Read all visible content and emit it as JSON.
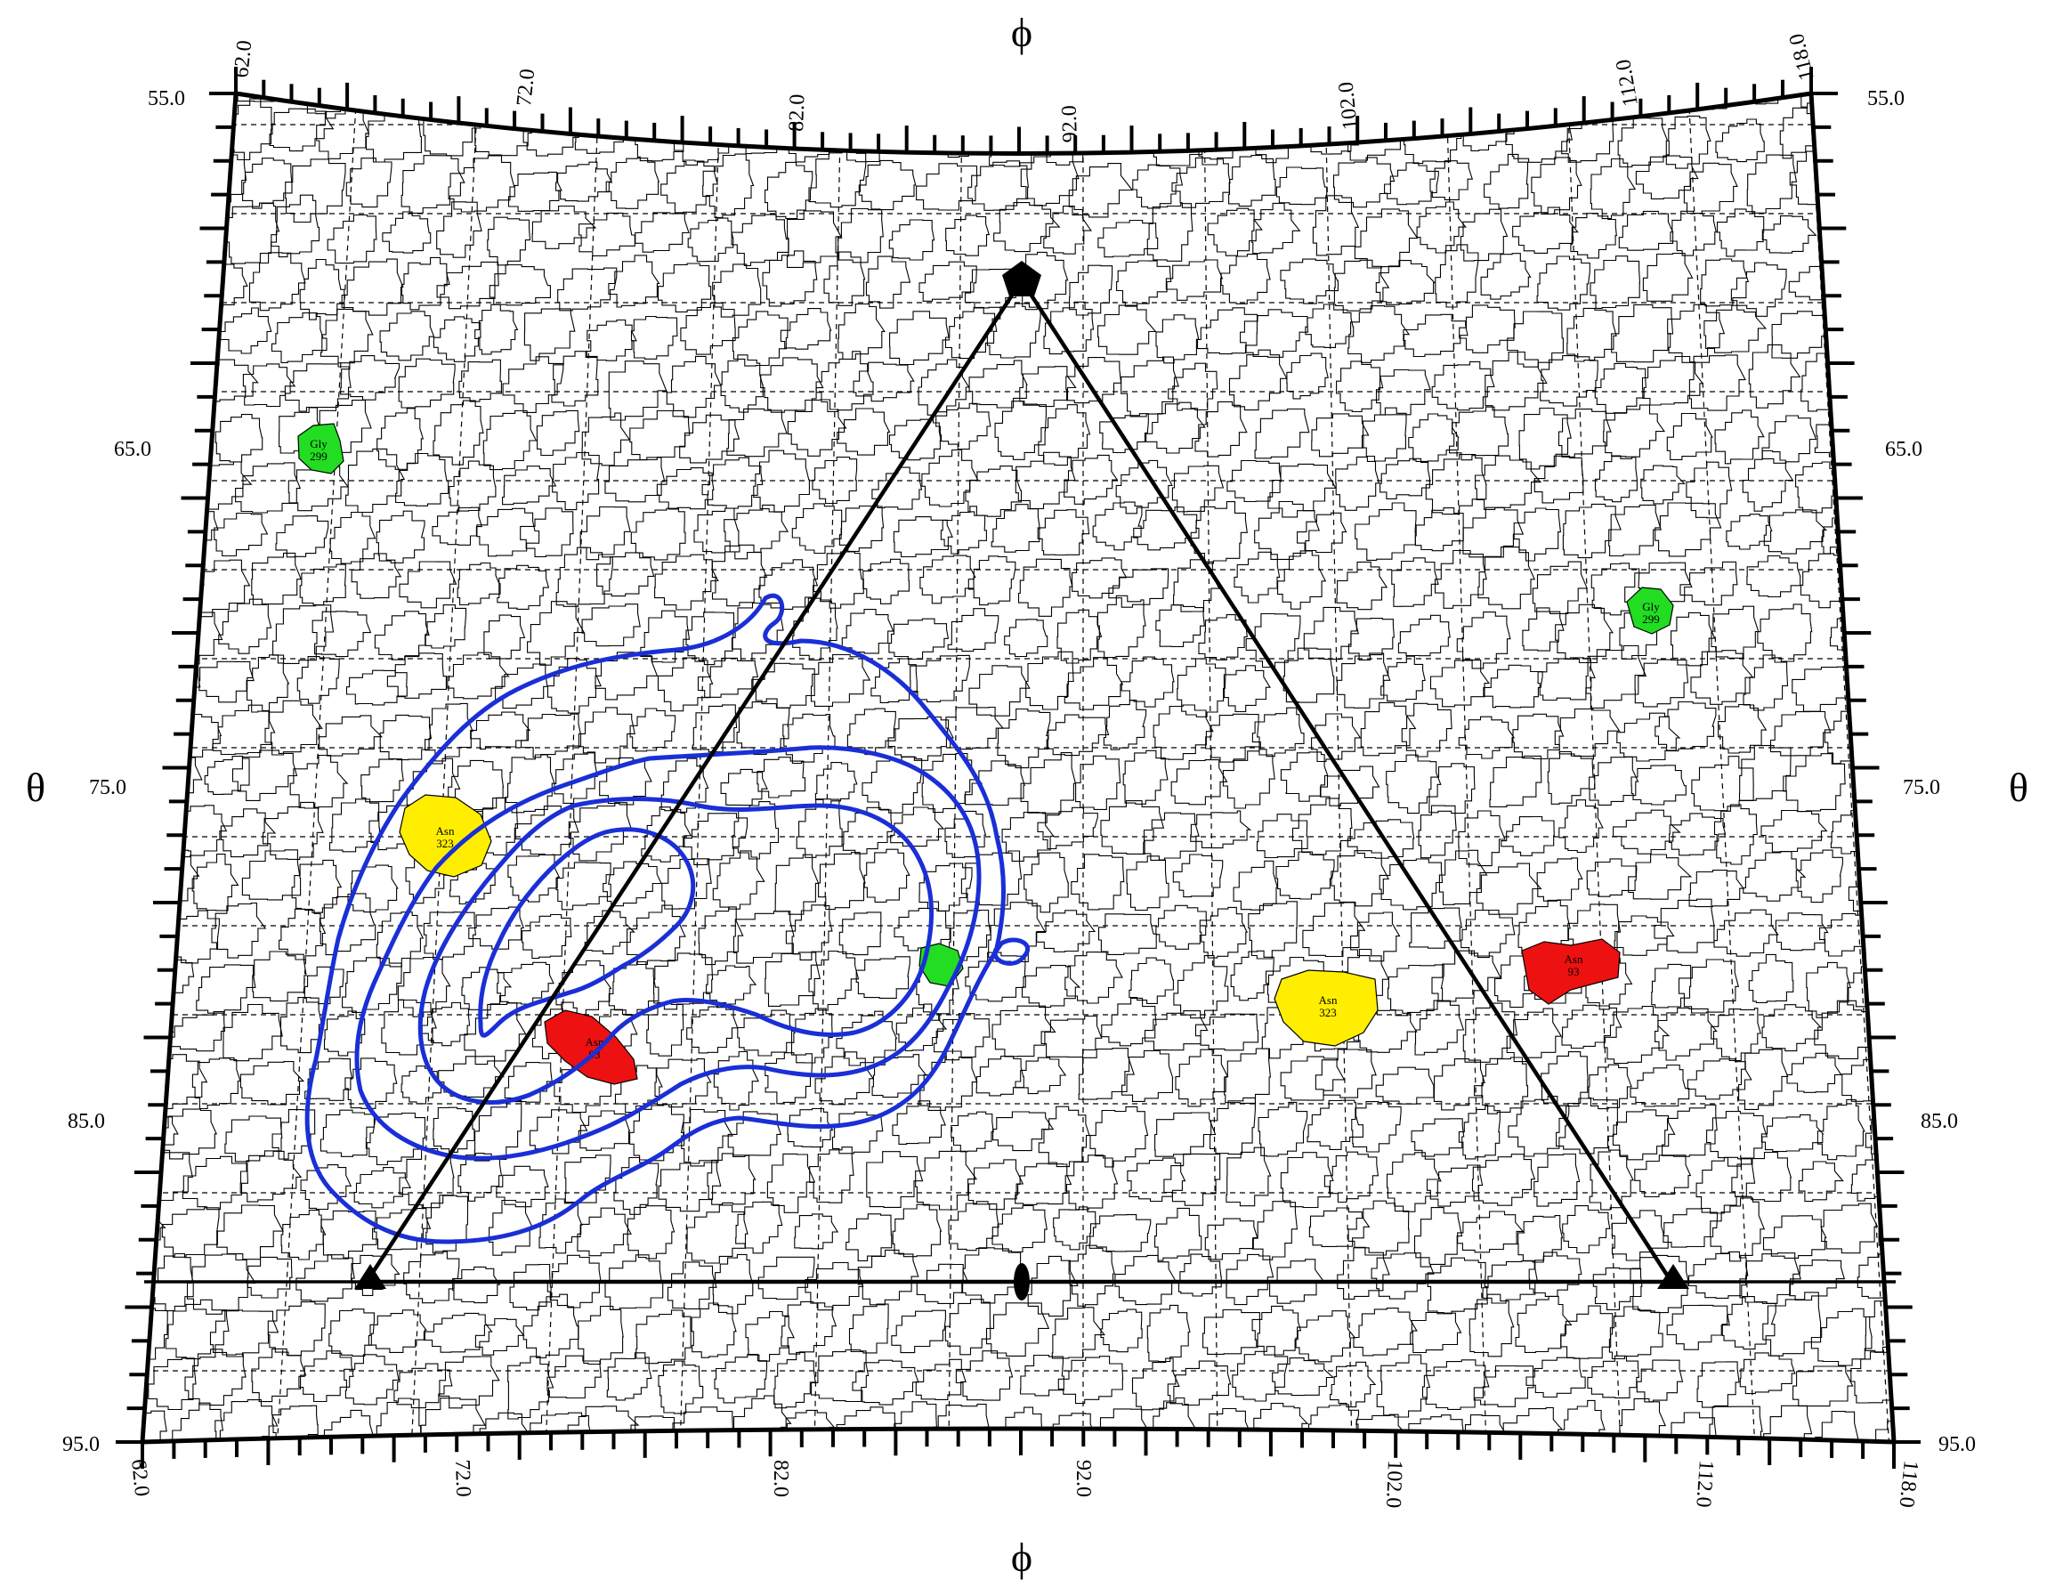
{
  "colors": {
    "contour": "#1a2fd6",
    "gly_highlight": "#22dd22",
    "asn323_highlight": "#ffee00",
    "asn93_highlight": "#ee1111",
    "cell_stroke": "#000000",
    "grid": "#000000"
  },
  "axes": {
    "theta_title": "θ",
    "phi_title": "ϕ",
    "theta_ticks": [
      "55.0",
      "65.0",
      "75.0",
      "85.0",
      "95.0"
    ],
    "phi_ticks": [
      "62.0",
      "72.0",
      "82.0",
      "92.0",
      "102.0",
      "112.0",
      "118.0"
    ]
  },
  "highlights": {
    "gly_299": {
      "name": "Gly",
      "num": "299"
    },
    "asn_323": {
      "name": "Asn",
      "num": "323"
    },
    "asn_93": {
      "name": "Asn",
      "num": "93"
    }
  },
  "symbols": [
    "pentagon-icon",
    "triangle-icon",
    "ellipse-icon"
  ]
}
